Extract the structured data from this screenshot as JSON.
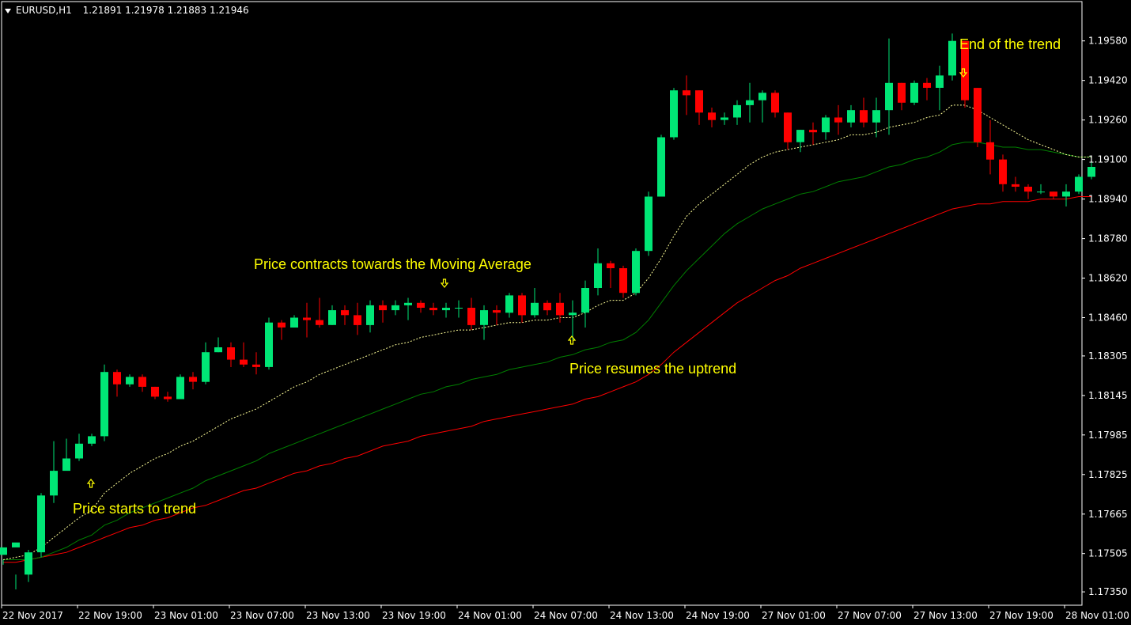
{
  "header": {
    "symbol": "EURUSD,H1",
    "open": "1.21891",
    "high": "1.21978",
    "low": "1.21883",
    "close": "1.21946"
  },
  "colors": {
    "background": "#000000",
    "bull": "#00e676",
    "bear": "#ff0000",
    "ma_fast": "#ffff99",
    "ma_mid": "#008000",
    "ma_slow": "#ff0000",
    "annotation": "#ffff00",
    "axis": "#ffffff"
  },
  "chart_data": {
    "type": "candlestick",
    "ylim": [
      1.1728,
      1.1972
    ],
    "y_ticks": [
      "1.19580",
      "1.19420",
      "1.19260",
      "1.19100",
      "1.18940",
      "1.18780",
      "1.18620",
      "1.18460",
      "1.18305",
      "1.18145",
      "1.17985",
      "1.17825",
      "1.17665",
      "1.17505",
      "1.17350"
    ],
    "x_ticks": [
      "22 Nov 2017",
      "22 Nov 19:00",
      "23 Nov 01:00",
      "23 Nov 07:00",
      "23 Nov 13:00",
      "23 Nov 19:00",
      "24 Nov 01:00",
      "24 Nov 07:00",
      "24 Nov 13:00",
      "24 Nov 19:00",
      "27 Nov 01:00",
      "27 Nov 07:00",
      "27 Nov 13:00",
      "27 Nov 19:00",
      "28 Nov 01:00"
    ],
    "candles": [
      [
        1.175,
        1.1753,
        1.1748,
        1.1746
      ],
      [
        1.1753,
        1.1755,
        1.1742,
        1.1736
      ],
      [
        1.1742,
        1.1751,
        1.1752,
        1.1739
      ],
      [
        1.1751,
        1.1774,
        1.1775,
        1.1749
      ],
      [
        1.1774,
        1.1784,
        1.1796,
        1.1771
      ],
      [
        1.1784,
        1.1789,
        1.1797,
        1.1785
      ],
      [
        1.1789,
        1.1795,
        1.1799,
        1.1788
      ],
      [
        1.1795,
        1.1798,
        1.1799,
        1.1794
      ],
      [
        1.1798,
        1.1824,
        1.1827,
        1.1796
      ],
      [
        1.1824,
        1.1819,
        1.1825,
        1.1814
      ],
      [
        1.1819,
        1.1822,
        1.1823,
        1.1818
      ],
      [
        1.1822,
        1.1818,
        1.1823,
        1.1816
      ],
      [
        1.1818,
        1.1814,
        1.1818,
        1.1813
      ],
      [
        1.1814,
        1.1813,
        1.1816,
        1.1812
      ],
      [
        1.1813,
        1.1822,
        1.1823,
        1.1813
      ],
      [
        1.1822,
        1.182,
        1.1824,
        1.1817
      ],
      [
        1.182,
        1.1832,
        1.1836,
        1.1819
      ],
      [
        1.1832,
        1.1834,
        1.1838,
        1.1832
      ],
      [
        1.1834,
        1.1829,
        1.1836,
        1.1826
      ],
      [
        1.1829,
        1.1827,
        1.1836,
        1.1826
      ],
      [
        1.1827,
        1.1826,
        1.1832,
        1.1823
      ],
      [
        1.1826,
        1.1844,
        1.1846,
        1.1825
      ],
      [
        1.1844,
        1.1842,
        1.1845,
        1.1837
      ],
      [
        1.1842,
        1.1846,
        1.1847,
        1.1842
      ],
      [
        1.1846,
        1.1845,
        1.1852,
        1.1838
      ],
      [
        1.1845,
        1.1843,
        1.1854,
        1.1842
      ],
      [
        1.1843,
        1.1849,
        1.1851,
        1.1843
      ],
      [
        1.1849,
        1.1847,
        1.1851,
        1.1843
      ],
      [
        1.1847,
        1.1843,
        1.1852,
        1.1839
      ],
      [
        1.1843,
        1.1851,
        1.1853,
        1.184
      ],
      [
        1.1851,
        1.1849,
        1.1853,
        1.1844
      ],
      [
        1.1849,
        1.1851,
        1.1853,
        1.1847
      ],
      [
        1.1851,
        1.1852,
        1.1854,
        1.1845
      ],
      [
        1.1852,
        1.185,
        1.1853,
        1.1848
      ],
      [
        1.185,
        1.1849,
        1.1852,
        1.1847
      ],
      [
        1.1849,
        1.185,
        1.1852,
        1.1846
      ],
      [
        1.185,
        1.185,
        1.1853,
        1.1846
      ],
      [
        1.185,
        1.1843,
        1.1854,
        1.1841
      ],
      [
        1.1843,
        1.1849,
        1.1851,
        1.1837
      ],
      [
        1.1849,
        1.1848,
        1.1851,
        1.1843
      ],
      [
        1.1848,
        1.1855,
        1.1856,
        1.1846
      ],
      [
        1.1855,
        1.1847,
        1.1856,
        1.1844
      ],
      [
        1.1847,
        1.1852,
        1.1858,
        1.1846
      ],
      [
        1.1852,
        1.1849,
        1.1853,
        1.1847
      ],
      [
        1.1852,
        1.1847,
        1.1856,
        1.1844
      ],
      [
        1.1847,
        1.1848,
        1.1853,
        1.1837
      ],
      [
        1.1848,
        1.1858,
        1.1861,
        1.1842
      ],
      [
        1.1858,
        1.1868,
        1.1874,
        1.1855
      ],
      [
        1.1868,
        1.1866,
        1.1869,
        1.1858
      ],
      [
        1.1866,
        1.1856,
        1.1867,
        1.1854
      ],
      [
        1.1856,
        1.1873,
        1.1874,
        1.1855
      ],
      [
        1.1873,
        1.1895,
        1.1897,
        1.1871
      ],
      [
        1.1895,
        1.1919,
        1.192,
        1.1895
      ],
      [
        1.1919,
        1.1938,
        1.1939,
        1.1918
      ],
      [
        1.1938,
        1.1936,
        1.1944,
        1.1928
      ],
      [
        1.1938,
        1.1929,
        1.1938,
        1.1924
      ],
      [
        1.1929,
        1.1926,
        1.1931,
        1.1923
      ],
      [
        1.1926,
        1.1927,
        1.1929,
        1.1924
      ],
      [
        1.1927,
        1.1932,
        1.1934,
        1.1924
      ],
      [
        1.1932,
        1.1934,
        1.1941,
        1.1925
      ],
      [
        1.1934,
        1.1937,
        1.1938,
        1.1925
      ],
      [
        1.1937,
        1.1929,
        1.1938,
        1.1927
      ],
      [
        1.1929,
        1.1917,
        1.1929,
        1.1914
      ],
      [
        1.1917,
        1.1922,
        1.1922,
        1.1913
      ],
      [
        1.1922,
        1.1921,
        1.1925,
        1.1916
      ],
      [
        1.1921,
        1.1927,
        1.1928,
        1.1918
      ],
      [
        1.1927,
        1.1925,
        1.1932,
        1.192
      ],
      [
        1.1925,
        1.193,
        1.1932,
        1.1923
      ],
      [
        1.193,
        1.1925,
        1.1935,
        1.1923
      ],
      [
        1.1925,
        1.193,
        1.1935,
        1.1919
      ],
      [
        1.193,
        1.1941,
        1.1959,
        1.192
      ],
      [
        1.1941,
        1.1933,
        1.1941,
        1.193
      ],
      [
        1.1933,
        1.1941,
        1.1942,
        1.1932
      ],
      [
        1.1941,
        1.1939,
        1.1943,
        1.1934
      ],
      [
        1.1939,
        1.1944,
        1.1948,
        1.193
      ],
      [
        1.1944,
        1.1958,
        1.1961,
        1.1942
      ],
      [
        1.1958,
        1.1934,
        1.1958,
        1.1931
      ],
      [
        1.1939,
        1.1917,
        1.1939,
        1.1915
      ],
      [
        1.1917,
        1.191,
        1.1926,
        1.1904
      ],
      [
        1.191,
        1.19,
        1.1912,
        1.1897
      ],
      [
        1.19,
        1.1899,
        1.1903,
        1.1897
      ],
      [
        1.1899,
        1.1897,
        1.19,
        1.1894
      ],
      [
        1.1897,
        1.1897,
        1.19,
        1.1896
      ],
      [
        1.1897,
        1.1895,
        1.1897,
        1.1894
      ],
      [
        1.1895,
        1.1897,
        1.19,
        1.1891
      ],
      [
        1.1897,
        1.1903,
        1.1904,
        1.1896
      ],
      [
        1.1903,
        1.1907,
        1.1909,
        1.1902
      ]
    ],
    "ma_fast": [
      1.1748,
      1.1749,
      1.175,
      1.1753,
      1.1757,
      1.1761,
      1.1765,
      1.1768,
      1.1775,
      1.1779,
      1.1783,
      1.1786,
      1.1789,
      1.1791,
      1.1794,
      1.1796,
      1.1799,
      1.1802,
      1.1805,
      1.1807,
      1.1809,
      1.1812,
      1.1815,
      1.1818,
      1.182,
      1.1823,
      1.1825,
      1.1827,
      1.1829,
      1.1831,
      1.1833,
      1.1835,
      1.1836,
      1.1838,
      1.1839,
      1.184,
      1.1841,
      1.1841,
      1.1842,
      1.1843,
      1.1844,
      1.1844,
      1.1845,
      1.1845,
      1.1846,
      1.1846,
      1.1848,
      1.1851,
      1.1853,
      1.1853,
      1.1856,
      1.1862,
      1.187,
      1.1879,
      1.1887,
      1.1892,
      1.1896,
      1.19,
      1.1904,
      1.1908,
      1.1911,
      1.1913,
      1.1914,
      1.1915,
      1.1916,
      1.1917,
      1.1918,
      1.192,
      1.192,
      1.1921,
      1.1923,
      1.1924,
      1.1925,
      1.1927,
      1.1928,
      1.1932,
      1.1932,
      1.193,
      1.1927,
      1.1924,
      1.1921,
      1.1918,
      1.1916,
      1.1914,
      1.1912,
      1.1911,
      1.1911
    ],
    "ma_mid": [
      1.1748,
      1.1748,
      1.1748,
      1.1749,
      1.1751,
      1.1753,
      1.1756,
      1.1758,
      1.1762,
      1.1764,
      1.1767,
      1.1769,
      1.1771,
      1.1773,
      1.1775,
      1.1777,
      1.178,
      1.1782,
      1.1784,
      1.1786,
      1.1788,
      1.1791,
      1.1793,
      1.1795,
      1.1797,
      1.1799,
      1.1801,
      1.1803,
      1.1805,
      1.1807,
      1.1809,
      1.1811,
      1.1813,
      1.1815,
      1.1816,
      1.1818,
      1.1819,
      1.1821,
      1.1822,
      1.1823,
      1.1825,
      1.1826,
      1.1827,
      1.1828,
      1.183,
      1.1831,
      1.1833,
      1.1834,
      1.1836,
      1.1837,
      1.184,
      1.1845,
      1.1852,
      1.1859,
      1.1865,
      1.187,
      1.1875,
      1.188,
      1.1884,
      1.1887,
      1.189,
      1.1892,
      1.1894,
      1.1896,
      1.1897,
      1.1899,
      1.1901,
      1.1902,
      1.1903,
      1.1905,
      1.1907,
      1.1908,
      1.191,
      1.1911,
      1.1913,
      1.1916,
      1.1917,
      1.1917,
      1.1916,
      1.1915,
      1.1915,
      1.1914,
      1.1914,
      1.1913,
      1.1912,
      1.1911,
      1.1911
    ],
    "ma_slow": [
      1.1747,
      1.1747,
      1.1748,
      1.1749,
      1.175,
      1.1751,
      1.1753,
      1.1755,
      1.1757,
      1.1759,
      1.1761,
      1.1762,
      1.1764,
      1.1765,
      1.1767,
      1.1769,
      1.177,
      1.1772,
      1.1774,
      1.1776,
      1.1777,
      1.1779,
      1.1781,
      1.1783,
      1.1784,
      1.1786,
      1.1787,
      1.1789,
      1.179,
      1.1792,
      1.1794,
      1.1795,
      1.1796,
      1.1798,
      1.1799,
      1.18,
      1.1801,
      1.1802,
      1.1804,
      1.1805,
      1.1806,
      1.1807,
      1.1808,
      1.1809,
      1.181,
      1.1811,
      1.1813,
      1.1814,
      1.1816,
      1.1818,
      1.182,
      1.1823,
      1.1827,
      1.1832,
      1.1836,
      1.184,
      1.1844,
      1.1848,
      1.1852,
      1.1855,
      1.1858,
      1.1861,
      1.1863,
      1.1866,
      1.1868,
      1.187,
      1.1872,
      1.1874,
      1.1876,
      1.1878,
      1.188,
      1.1882,
      1.1884,
      1.1886,
      1.1888,
      1.189,
      1.1891,
      1.1892,
      1.1892,
      1.1893,
      1.1893,
      1.1893,
      1.1894,
      1.1894,
      1.1894,
      1.1895,
      1.1895
    ],
    "annotations": [
      {
        "text": "Price starts to trend",
        "arrow": "up"
      },
      {
        "text": "Price contracts towards the Moving Average",
        "arrow": "down"
      },
      {
        "text": "Price resumes the uptrend",
        "arrow": "up"
      },
      {
        "text": "End of the trend",
        "arrow": "down"
      }
    ]
  }
}
